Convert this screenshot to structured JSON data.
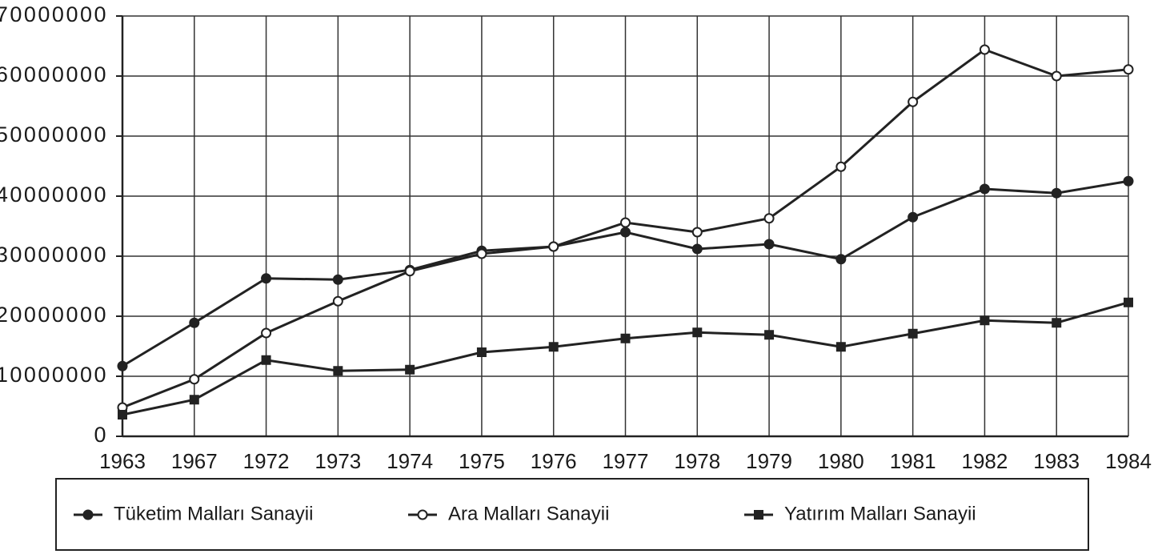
{
  "chart_data": {
    "type": "line",
    "categories": [
      "1963",
      "1967",
      "1972",
      "1973",
      "1974",
      "1975",
      "1976",
      "1977",
      "1978",
      "1979",
      "1980",
      "1981",
      "1982",
      "1983",
      "1984"
    ],
    "series": [
      {
        "name": "Tüketim Malları Sanayii",
        "color": "#222222",
        "marker": "filled-circle",
        "values": [
          11700000,
          18900000,
          26300000,
          26100000,
          27700000,
          30900000,
          31600000,
          34000000,
          31200000,
          32000000,
          29500000,
          36500000,
          41200000,
          40500000,
          42500000
        ]
      },
      {
        "name": "Ara Malları Sanayii",
        "color": "#222222",
        "marker": "open-circle",
        "values": [
          4800000,
          9500000,
          17200000,
          22500000,
          27500000,
          30400000,
          31600000,
          35600000,
          34000000,
          36300000,
          44900000,
          55700000,
          64400000,
          60000000,
          61100000
        ]
      },
      {
        "name": "Yatırım Malları Sanayii",
        "color": "#222222",
        "marker": "square",
        "values": [
          3600000,
          6100000,
          12700000,
          10900000,
          11100000,
          14000000,
          14900000,
          16300000,
          17300000,
          16900000,
          14900000,
          17100000,
          19300000,
          18900000,
          22300000
        ]
      }
    ],
    "ylim": [
      0,
      70000000
    ],
    "yticks": [
      0,
      10000000,
      20000000,
      30000000,
      40000000,
      50000000,
      60000000,
      70000000
    ],
    "grid": true,
    "legend": "bottom"
  }
}
